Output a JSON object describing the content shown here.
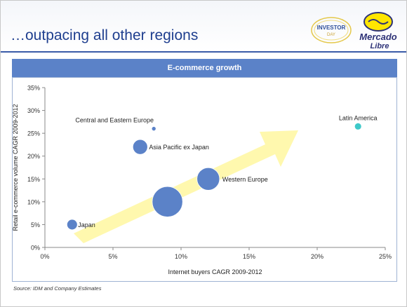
{
  "slide": {
    "title": "…outpacing all other regions",
    "source": "Source: IDM and Company Estimates"
  },
  "logos": {
    "investor_day_line1": "INVESTOR",
    "investor_day_line2": "DAY",
    "mercadolibre_line1": "Mercado",
    "mercadolibre_line2": "Libre"
  },
  "colors": {
    "title": "#1f3f8f",
    "header_bg": "#5b82c8",
    "bubble": "#5b82c8",
    "bubble_highlight": "#3ec9c9",
    "arrow": "#fff7a0"
  },
  "chart_data": {
    "type": "scatter",
    "title": "E-commerce growth",
    "xlabel": "Internet buyers CAGR 2009-2012",
    "ylabel": "Retail e-commerce volume CAGR 2009-2012",
    "xlim": [
      0,
      25
    ],
    "ylim": [
      0,
      35
    ],
    "x_ticks": [
      "0%",
      "5%",
      "10%",
      "15%",
      "20%",
      "25%"
    ],
    "y_ticks": [
      "0%",
      "5%",
      "10%",
      "15%",
      "20%",
      "25%",
      "30%",
      "35%"
    ],
    "grid": false,
    "points": [
      {
        "label": "Japan",
        "x": 2.0,
        "y": 5.0,
        "size": 1.2,
        "highlight": false
      },
      {
        "label": "Asia Pacific ex Japan",
        "x": 7.0,
        "y": 22.0,
        "size": 1.7,
        "highlight": false
      },
      {
        "label": "Central and Eastern Europe",
        "x": 8.0,
        "y": 26.0,
        "size": 0.5,
        "highlight": false
      },
      {
        "label": "",
        "x": 9.0,
        "y": 10.0,
        "size": 3.5,
        "highlight": false
      },
      {
        "label": "Western Europe",
        "x": 12.0,
        "y": 15.0,
        "size": 2.6,
        "highlight": false
      },
      {
        "label": "Latin America",
        "x": 23.0,
        "y": 26.5,
        "size": 0.8,
        "highlight": true
      }
    ]
  }
}
